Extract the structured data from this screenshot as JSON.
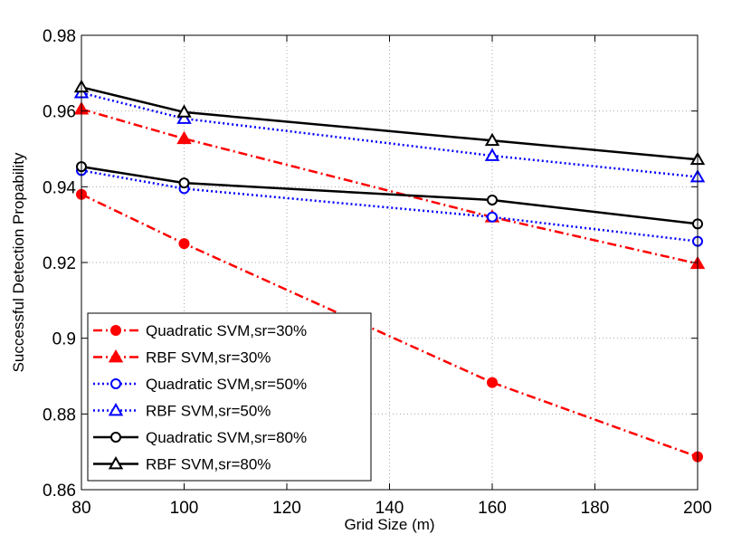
{
  "chart_data": {
    "type": "line",
    "title": "",
    "xlabel": "Grid Size (m)",
    "ylabel": "Successful Detection Propability",
    "xlim": [
      80,
      200
    ],
    "ylim": [
      0.86,
      0.98
    ],
    "x_ticks": [
      80,
      100,
      120,
      140,
      160,
      180,
      200
    ],
    "y_ticks": [
      0.86,
      0.88,
      0.9,
      0.92,
      0.94,
      0.96,
      0.98
    ],
    "x_tick_labels": [
      "80",
      "100",
      "120",
      "140",
      "160",
      "180",
      "200"
    ],
    "y_tick_labels": [
      "0.86",
      "0.88",
      "0.9",
      "0.92",
      "0.94",
      "0.96",
      "0.98"
    ],
    "grid": true,
    "legend_position": "bottom-left",
    "x": [
      80,
      100,
      160,
      200
    ],
    "series": [
      {
        "name": "Quadratic SVM,sr=30%",
        "values": [
          0.938,
          0.925,
          0.8883,
          0.8687
        ],
        "color": "#ff0000",
        "dash": "dashdot",
        "marker": "circle",
        "filled": true
      },
      {
        "name": "RBF SVM,sr=30%",
        "values": [
          0.9605,
          0.9527,
          0.932,
          0.9197
        ],
        "color": "#ff0000",
        "dash": "dashdot",
        "marker": "triangle",
        "filled": true
      },
      {
        "name": "Quadratic SVM,sr=50%",
        "values": [
          0.9443,
          0.9395,
          0.932,
          0.9256
        ],
        "color": "#0000ff",
        "dash": "dotted",
        "marker": "circle",
        "filled": false
      },
      {
        "name": "RBF SVM,sr=50%",
        "values": [
          0.9648,
          0.958,
          0.9482,
          0.9426
        ],
        "color": "#0000ff",
        "dash": "dotted",
        "marker": "triangle",
        "filled": false
      },
      {
        "name": "Quadratic SVM,sr=80%",
        "values": [
          0.9453,
          0.941,
          0.9365,
          0.9302
        ],
        "color": "#000000",
        "dash": "solid",
        "marker": "circle",
        "filled": false
      },
      {
        "name": "RBF SVM,sr=80%",
        "values": [
          0.9663,
          0.9597,
          0.9522,
          0.9472
        ],
        "color": "#000000",
        "dash": "solid",
        "marker": "triangle",
        "filled": false
      }
    ]
  }
}
